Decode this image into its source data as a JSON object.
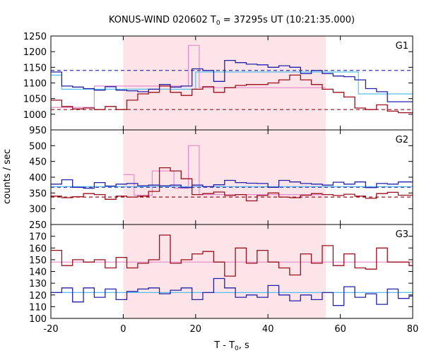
{
  "chart_data": {
    "type": "line",
    "title": {
      "prefix": "KONUS-WIND 020602 T",
      "sub": "0",
      "suffix": " = 37295s UT (10:21:35.000)"
    },
    "xlabel": {
      "prefix": "T - T",
      "sub": "0",
      "suffix": ", s"
    },
    "ylabel": "counts / sec",
    "xlim": [
      -20,
      80
    ],
    "xticks": [
      -20,
      0,
      20,
      40,
      60,
      80
    ],
    "highlight_interval": [
      0,
      56
    ],
    "colors": {
      "count_rate": "#2222aa",
      "background_rate": "#9b0f1a",
      "fit_cyan": "#55c0f0",
      "fit_pink": "#e68acb",
      "interval_fill": "#fde4e8",
      "dashed_blue": "#3333bb",
      "dashed_red": "#9b0f1a"
    },
    "panels": [
      {
        "name": "G1",
        "ylim": [
          950,
          1250
        ],
        "yticks": [
          950,
          1000,
          1050,
          1100,
          1150,
          1200,
          1250
        ],
        "bin_edges": [
          -20,
          -17,
          -14,
          -11,
          -8,
          -5,
          -2,
          1,
          4,
          7,
          10,
          13,
          16,
          19,
          22,
          25,
          28,
          31,
          34,
          37,
          40,
          43,
          46,
          49,
          52,
          55,
          58,
          61,
          64,
          67,
          70,
          73,
          76,
          79,
          80
        ],
        "series": [
          {
            "name": "",
            "color": "count_rate",
            "values": [
              1135,
              1090,
              1087,
              1082,
              1077,
              1088,
              1077,
              1075,
              1072,
              1080,
              1095,
              1087,
              1090,
              1145,
              1140,
              1105,
              1172,
              1165,
              1160,
              1158,
              1150,
              1155,
              1150,
              1130,
              1140,
              1130,
              1122,
              1120,
              1110,
              1082,
              1072,
              1040,
              1040,
              1040
            ]
          },
          {
            "name": "",
            "color": "background_rate",
            "values": [
              1045,
              1025,
              1017,
              1020,
              1015,
              1025,
              1015,
              1045,
              1065,
              1070,
              1090,
              1070,
              1060,
              1080,
              1088,
              1070,
              1085,
              1092,
              1095,
              1095,
              1100,
              1110,
              1125,
              1110,
              1095,
              1080,
              1070,
              1055,
              1020,
              1015,
              1030,
              1010,
              1005,
              1005
            ]
          }
        ],
        "steps": [
          {
            "color": "fit_cyan",
            "points": [
              [
                -20,
                1125
              ],
              [
                -17,
                1125
              ],
              [
                -17,
                1080
              ],
              [
                20,
                1080
              ],
              [
                20,
                1135
              ],
              [
                65,
                1135
              ],
              [
                65,
                1065
              ],
              [
                80,
                1065
              ]
            ]
          },
          {
            "color": "fit_pink",
            "points": [
              [
                -20,
                1022
              ],
              [
                -8,
                1022
              ],
              [
                -8,
                1090
              ],
              [
                18,
                1090
              ],
              [
                18,
                1220
              ],
              [
                21,
                1220
              ],
              [
                21,
                1085
              ],
              [
                56,
                1085
              ]
            ]
          }
        ],
        "hlines": [
          {
            "color": "dashed_blue",
            "y": 1140
          },
          {
            "color": "dashed_red",
            "y": 1015
          }
        ]
      },
      {
        "name": "G2",
        "ylim": [
          250,
          550
        ],
        "yticks": [
          250,
          300,
          350,
          400,
          450,
          500
        ],
        "bin_edges": [
          -20,
          -17,
          -14,
          -11,
          -8,
          -5,
          -2,
          1,
          4,
          7,
          10,
          13,
          16,
          19,
          22,
          25,
          28,
          31,
          34,
          37,
          40,
          43,
          46,
          49,
          52,
          55,
          58,
          61,
          64,
          67,
          70,
          73,
          76,
          79,
          80
        ],
        "series": [
          {
            "name": "",
            "color": "count_rate",
            "values": [
              378,
              392,
              368,
              365,
              383,
              372,
              378,
              380,
              373,
              375,
              373,
              375,
              367,
              375,
              370,
              376,
              390,
              383,
              381,
              380,
              368,
              390,
              385,
              380,
              378,
              375,
              384,
              378,
              385,
              367,
              380,
              378,
              385,
              385
            ]
          },
          {
            "name": "",
            "color": "background_rate",
            "values": [
              340,
              335,
              338,
              348,
              345,
              330,
              340,
              337,
              340,
              355,
              430,
              420,
              395,
              345,
              348,
              353,
              342,
              345,
              325,
              342,
              350,
              337,
              335,
              343,
              348,
              345,
              342,
              346,
              340,
              333,
              348,
              352,
              343,
              343
            ]
          }
        ],
        "steps": [
          {
            "color": "fit_cyan",
            "points": [
              [
                -20,
                370
              ],
              [
                80,
                370
              ]
            ]
          },
          {
            "color": "fit_pink",
            "points": [
              [
                0,
                408
              ],
              [
                3,
                408
              ],
              [
                3,
                343
              ],
              [
                8,
                343
              ],
              [
                8,
                420
              ],
              [
                14,
                420
              ],
              [
                14,
                365
              ],
              [
                18,
                365
              ],
              [
                18,
                500
              ],
              [
                21,
                500
              ],
              [
                21,
                345
              ],
              [
                56,
                345
              ]
            ]
          }
        ],
        "hlines": [
          {
            "color": "dashed_blue",
            "y": 368
          },
          {
            "color": "dashed_red",
            "y": 337
          }
        ]
      },
      {
        "name": "G3",
        "ylim": [
          100,
          180
        ],
        "yticks": [
          100,
          110,
          120,
          130,
          140,
          150,
          160,
          170
        ],
        "bin_edges": [
          -20,
          -17,
          -14,
          -11,
          -8,
          -5,
          -2,
          1,
          4,
          7,
          10,
          13,
          16,
          19,
          22,
          25,
          28,
          31,
          34,
          37,
          40,
          43,
          46,
          49,
          52,
          55,
          58,
          61,
          64,
          67,
          70,
          73,
          76,
          79,
          80
        ],
        "series": [
          {
            "name": "",
            "color": "count_rate",
            "values": [
              122,
              126,
              114,
              126,
              118,
              125,
              116,
              123,
              125,
              126,
              121,
              124,
              126,
              116,
              122,
              134,
              126,
              118,
              120,
              118,
              128,
              120,
              115,
              120,
              116,
              122,
              111,
              127,
              118,
              121,
              112,
              125,
              117,
              119
            ]
          },
          {
            "name": "",
            "color": "background_rate",
            "values": [
              158,
              145,
              150,
              148,
              150,
              143,
              152,
              143,
              147,
              150,
              171,
              147,
              150,
              155,
              157,
              148,
              136,
              160,
              147,
              158,
              148,
              143,
              137,
              155,
              147,
              162,
              145,
              155,
              143,
              142,
              160,
              148,
              148,
              145
            ]
          }
        ],
        "steps": [
          {
            "color": "fit_cyan",
            "points": [
              [
                -20,
                122
              ],
              [
                80,
                122
              ]
            ]
          },
          {
            "color": "fit_pink",
            "points": [
              [
                -20,
                148
              ],
              [
                80,
                148
              ]
            ]
          }
        ],
        "hlines": []
      }
    ]
  }
}
